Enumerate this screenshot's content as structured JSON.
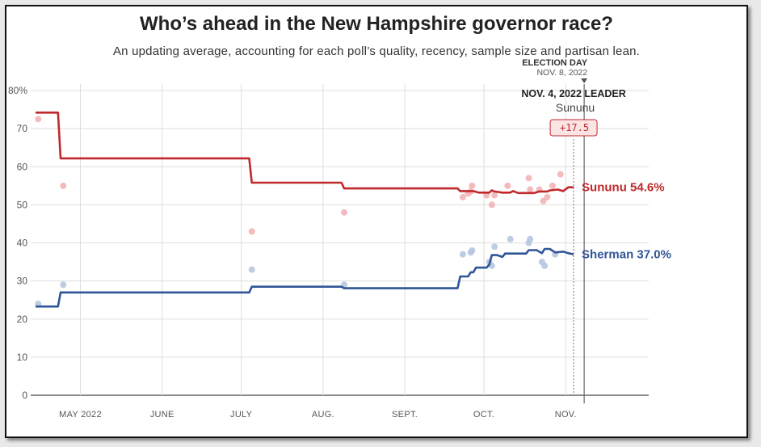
{
  "header": {
    "title": "Who’s ahead in the New Hampshire governor race?",
    "subtitle": "An updating average, accounting for each poll’s quality, recency, sample size and partisan lean."
  },
  "annotations": {
    "election_day_label": "ELECTION DAY",
    "election_day_date": "NOV. 8, 2022",
    "leader_label": "NOV. 4, 2022 LEADER",
    "leader_name": "Sununu",
    "leader_margin": "+17.5"
  },
  "colors": {
    "sununu": "#c0282c",
    "sununu_poll": "#f2b4b6",
    "sherman": "#2f5597",
    "sherman_poll": "#b7c6e0",
    "grid": "#dddddd"
  },
  "chart_data": {
    "type": "line",
    "title": "Who’s ahead in the New Hampshire governor race?",
    "ylim": [
      0,
      80
    ],
    "yticks": [
      0,
      10,
      20,
      30,
      40,
      50,
      60,
      70,
      80
    ],
    "ytick_labels": [
      "0",
      "10",
      "20",
      "30",
      "40",
      "50",
      "60",
      "70",
      "80%"
    ],
    "xlim": [
      -17,
      217
    ],
    "xtick_labels": [
      "MAY 2022",
      "JUNE",
      "JULY",
      "AUG.",
      "SEPT.",
      "OCT.",
      "NOV."
    ],
    "xtick_days": [
      0,
      31,
      61,
      92,
      123,
      153,
      184
    ],
    "grid": true,
    "x_unit": "days since May 1, 2022",
    "election_day": 191,
    "leader_day": 187,
    "series": [
      {
        "name": "Sununu",
        "end_label": "Sununu 54.6%",
        "points": [
          [
            -17,
            74.2
          ],
          [
            -8.5,
            74.2
          ],
          [
            -7.5,
            62.2
          ],
          [
            64,
            62.2
          ],
          [
            65,
            55.8
          ],
          [
            99,
            55.8
          ],
          [
            100,
            54.3
          ],
          [
            143,
            54.3
          ],
          [
            144,
            53.6
          ],
          [
            149,
            53.6
          ],
          [
            151,
            53.2
          ],
          [
            155,
            53.2
          ],
          [
            156,
            53.8
          ],
          [
            157,
            53.5
          ],
          [
            160,
            53.2
          ],
          [
            163,
            53.2
          ],
          [
            164,
            53.6
          ],
          [
            166,
            53.1
          ],
          [
            172,
            53.1
          ],
          [
            174,
            53.5
          ],
          [
            177,
            53.5
          ],
          [
            178,
            53.8
          ],
          [
            181,
            54.0
          ],
          [
            183,
            53.6
          ],
          [
            185,
            54.6
          ],
          [
            187,
            54.6
          ]
        ],
        "polls": [
          [
            -16,
            72.5
          ],
          [
            -6.5,
            55.0
          ],
          [
            65,
            43.0
          ],
          [
            100,
            48.0
          ],
          [
            145,
            52.0
          ],
          [
            147,
            53.0
          ],
          [
            148,
            53.5
          ],
          [
            148.5,
            55.0
          ],
          [
            154,
            52.5
          ],
          [
            156,
            50.0
          ],
          [
            157,
            52.5
          ],
          [
            162,
            55.0
          ],
          [
            170,
            57.0
          ],
          [
            170.5,
            54.0
          ],
          [
            174,
            54.0
          ],
          [
            175.5,
            51.0
          ],
          [
            177,
            52.0
          ],
          [
            179,
            55.0
          ],
          [
            182,
            58.0
          ]
        ]
      },
      {
        "name": "Sherman",
        "end_label": "Sherman 37.0%",
        "points": [
          [
            -17,
            23.3
          ],
          [
            -8.5,
            23.3
          ],
          [
            -7.5,
            27.0
          ],
          [
            64,
            27.0
          ],
          [
            65,
            28.5
          ],
          [
            99,
            28.5
          ],
          [
            100,
            28.1
          ],
          [
            143,
            28.1
          ],
          [
            144,
            31.2
          ],
          [
            147,
            31.2
          ],
          [
            148,
            32.3
          ],
          [
            149,
            32.3
          ],
          [
            150,
            33.5
          ],
          [
            154,
            33.5
          ],
          [
            155,
            34.3
          ],
          [
            156,
            36.8
          ],
          [
            158,
            36.8
          ],
          [
            160,
            36.3
          ],
          [
            161,
            37.2
          ],
          [
            169,
            37.2
          ],
          [
            170,
            38.1
          ],
          [
            173,
            38.1
          ],
          [
            175,
            37.3
          ],
          [
            176,
            38.4
          ],
          [
            178,
            38.4
          ],
          [
            180,
            37.5
          ],
          [
            183,
            37.7
          ],
          [
            185,
            37.3
          ],
          [
            187,
            37.0
          ]
        ],
        "polls": [
          [
            -16,
            24.0
          ],
          [
            -6.5,
            29.0
          ],
          [
            65,
            33.0
          ],
          [
            100,
            29.0
          ],
          [
            145,
            37.0
          ],
          [
            148,
            37.5
          ],
          [
            148.5,
            38.0
          ],
          [
            155,
            35.0
          ],
          [
            156,
            34.0
          ],
          [
            157,
            39.0
          ],
          [
            163,
            41.0
          ],
          [
            170,
            40.0
          ],
          [
            170.5,
            41.0
          ],
          [
            175,
            35.0
          ],
          [
            176,
            34.0
          ],
          [
            180,
            37.0
          ]
        ]
      }
    ]
  }
}
